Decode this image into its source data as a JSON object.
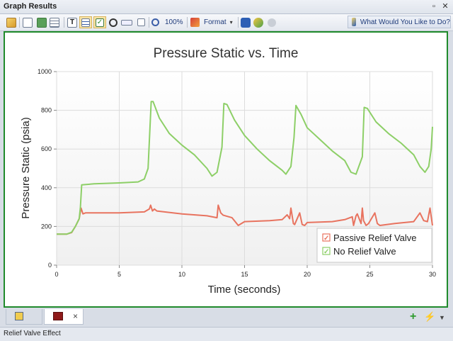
{
  "window": {
    "title": "Graph Results",
    "pin_icon": "pin-icon",
    "close_icon": "close-icon"
  },
  "toolbar": {
    "zoom_label": "100%",
    "format_label": "Format",
    "help_label": "What Would You Like to Do?"
  },
  "chart_data": {
    "type": "line",
    "title": "Pressure Static vs. Time",
    "xlabel": "Time (seconds)",
    "ylabel": "Pressure Static (psia)",
    "xlim": [
      0,
      30
    ],
    "ylim": [
      0,
      1000
    ],
    "xticks": [
      0,
      5,
      10,
      15,
      20,
      25,
      30
    ],
    "yticks": [
      0,
      200,
      400,
      600,
      800,
      1000
    ],
    "grid": true,
    "legend_position": "bottom-right",
    "series": [
      {
        "name": "Passive Relief Valve",
        "color": "#e8735f",
        "x": [
          0,
          0.8,
          1.2,
          1.5,
          1.8,
          1.95,
          2.1,
          2.3,
          3,
          5,
          7,
          7.4,
          7.5,
          7.65,
          7.8,
          8,
          10,
          12,
          12.8,
          12.9,
          13.1,
          13.3,
          14,
          14.5,
          15,
          17,
          18,
          18.4,
          18.6,
          18.7,
          18.9,
          19,
          19.4,
          19.6,
          19.8,
          20,
          22,
          23,
          23.6,
          23.7,
          23.9,
          24,
          24.3,
          24.4,
          24.5,
          24.7,
          24.9,
          25.4,
          25.6,
          25.8,
          27,
          28.5,
          29,
          29.3,
          29.6,
          29.8,
          30
        ],
        "y": [
          160,
          160,
          168,
          200,
          240,
          295,
          265,
          270,
          270,
          270,
          275,
          290,
          310,
          280,
          290,
          280,
          265,
          255,
          245,
          310,
          270,
          258,
          245,
          205,
          225,
          230,
          235,
          260,
          240,
          295,
          215,
          210,
          270,
          210,
          205,
          220,
          225,
          235,
          250,
          205,
          255,
          265,
          215,
          295,
          230,
          205,
          215,
          270,
          215,
          205,
          215,
          225,
          270,
          230,
          225,
          295,
          205
        ]
      },
      {
        "name": "No Relief Valve",
        "color": "#8dcf67",
        "x": [
          0,
          0.8,
          1.2,
          1.5,
          1.8,
          1.9,
          2.0,
          3,
          5,
          6.5,
          7,
          7.3,
          7.55,
          7.7,
          8.2,
          9,
          10,
          11,
          12,
          12.4,
          12.8,
          13.2,
          13.35,
          13.6,
          14.2,
          15,
          16,
          17,
          18,
          18.3,
          18.7,
          18.95,
          19.1,
          19.5,
          20,
          21,
          22,
          23,
          23.5,
          23.9,
          24.4,
          24.55,
          24.8,
          25.5,
          26.5,
          27.5,
          28.5,
          29.0,
          29.4,
          29.7,
          29.9,
          30
        ],
        "y": [
          160,
          160,
          170,
          200,
          240,
          300,
          415,
          420,
          425,
          430,
          445,
          500,
          845,
          845,
          760,
          680,
          620,
          570,
          500,
          460,
          480,
          610,
          835,
          830,
          750,
          670,
          600,
          540,
          490,
          470,
          510,
          660,
          825,
          780,
          710,
          650,
          590,
          540,
          480,
          470,
          560,
          815,
          810,
          740,
          680,
          630,
          570,
          510,
          480,
          510,
          600,
          715
        ]
      }
    ]
  },
  "tabs": [
    {
      "id": "tab-1",
      "icon": "workspace-icon"
    },
    {
      "id": "tab-2",
      "icon": "graph-icon",
      "close": "×"
    }
  ],
  "tabstrip_right": {
    "add_icon": "add-icon",
    "lightning_icon": "lightning-icon",
    "dropdown_icon": "chevron-down-icon"
  },
  "status": {
    "text": "Relief Valve Effect"
  }
}
